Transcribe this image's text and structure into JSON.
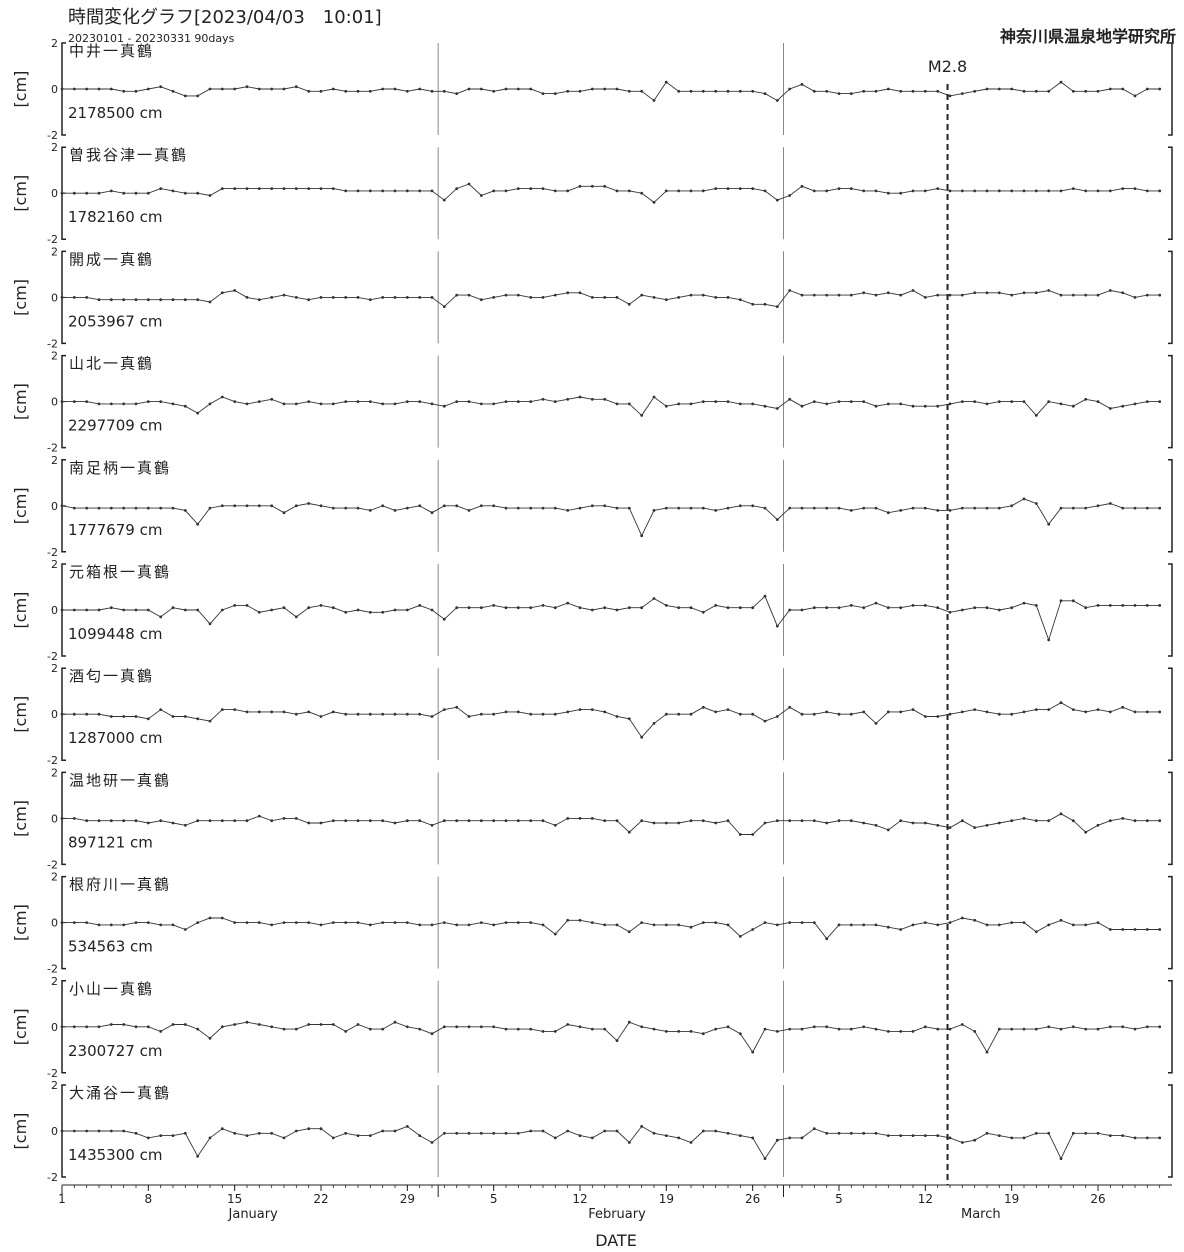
{
  "header": {
    "title": "時間変化グラフ[2023/04/03　10:01]",
    "subtitle": "20230101 - 20230331 90days",
    "institute": "神奈川県温泉地学研究所"
  },
  "colors": {
    "line": "#333333",
    "axis": "#222222",
    "separator": "#888888",
    "marker": "#333333"
  },
  "chart_data": {
    "type": "line",
    "title": "時間変化グラフ[2023/04/03　10:01]",
    "subtitle": "20230101 - 20230331 90days",
    "xlabel": "DATE",
    "ylabel": "[cm]",
    "ylim": [
      -2,
      2
    ],
    "yticks": [
      "2",
      "0",
      "-2"
    ],
    "x_days": 90,
    "x_start": "2023-01-01",
    "xticks": [
      {
        "day": 1,
        "label": "1"
      },
      {
        "day": 8,
        "label": "8"
      },
      {
        "day": 15,
        "label": "15"
      },
      {
        "day": 22,
        "label": "22"
      },
      {
        "day": 29,
        "label": "29"
      },
      {
        "day": 36,
        "label": "5"
      },
      {
        "day": 43,
        "label": "12"
      },
      {
        "day": 50,
        "label": "19"
      },
      {
        "day": 57,
        "label": "26"
      },
      {
        "day": 64,
        "label": "5"
      },
      {
        "day": 71,
        "label": "12"
      },
      {
        "day": 78,
        "label": "19"
      },
      {
        "day": 85,
        "label": "26"
      }
    ],
    "months": [
      {
        "label": "January",
        "start_day": 1,
        "end_day": 32
      },
      {
        "label": "February",
        "start_day": 32,
        "end_day": 60
      },
      {
        "label": "March",
        "start_day": 60,
        "end_day": 91
      }
    ],
    "event": {
      "label": "M2.8",
      "day": 72.8
    },
    "series": [
      {
        "name": "中井一真鶴",
        "baseline_label": "2178500 cm",
        "values": [
          0,
          0,
          0,
          0,
          0,
          -0.1,
          -0.1,
          0,
          0.1,
          -0.1,
          -0.3,
          -0.3,
          0,
          0,
          0,
          0.1,
          0,
          0,
          0,
          0.1,
          -0.1,
          -0.1,
          0,
          -0.1,
          -0.1,
          -0.1,
          0,
          0,
          -0.1,
          0,
          -0.1,
          -0.1,
          -0.2,
          0,
          0,
          -0.1,
          0,
          0,
          0,
          -0.2,
          -0.2,
          -0.1,
          -0.1,
          0,
          0,
          0,
          -0.1,
          -0.1,
          -0.5,
          0.3,
          -0.1,
          -0.1,
          -0.1,
          -0.1,
          -0.1,
          -0.1,
          -0.1,
          -0.2,
          -0.5,
          0,
          0.2,
          -0.1,
          -0.1,
          -0.2,
          -0.2,
          -0.1,
          -0.1,
          0,
          -0.1,
          -0.1,
          -0.1,
          -0.1,
          -0.3,
          -0.2,
          -0.1,
          0,
          0,
          0,
          -0.1,
          -0.1,
          -0.1,
          0.3,
          -0.1,
          -0.1,
          -0.1,
          0,
          0,
          -0.3,
          0,
          0
        ]
      },
      {
        "name": "曽我谷津一真鶴",
        "baseline_label": "1782160 cm",
        "values": [
          0,
          0,
          0,
          0,
          0.1,
          0,
          0,
          0,
          0.2,
          0.1,
          0,
          0,
          -0.1,
          0.2,
          0.2,
          0.2,
          0.2,
          0.2,
          0.2,
          0.2,
          0.2,
          0.2,
          0.2,
          0.1,
          0.1,
          0.1,
          0.1,
          0.1,
          0.1,
          0.1,
          0.1,
          -0.3,
          0.2,
          0.4,
          -0.1,
          0.1,
          0.1,
          0.2,
          0.2,
          0.2,
          0.1,
          0.1,
          0.3,
          0.3,
          0.3,
          0.1,
          0.1,
          0,
          -0.4,
          0.1,
          0.1,
          0.1,
          0.1,
          0.2,
          0.2,
          0.2,
          0.2,
          0.1,
          -0.3,
          -0.1,
          0.3,
          0.1,
          0.1,
          0.2,
          0.2,
          0.1,
          0.1,
          0,
          0,
          0.1,
          0.1,
          0.2,
          0.1,
          0.1,
          0.1,
          0.1,
          0.1,
          0.1,
          0.1,
          0.1,
          0.1,
          0.1,
          0.2,
          0.1,
          0.1,
          0.1,
          0.2,
          0.2,
          0.1,
          0.1
        ]
      },
      {
        "name": "開成一真鶴",
        "baseline_label": "2053967 cm",
        "values": [
          0,
          0,
          0,
          -0.1,
          -0.1,
          -0.1,
          -0.1,
          -0.1,
          -0.1,
          -0.1,
          -0.1,
          -0.1,
          -0.2,
          0.2,
          0.3,
          0,
          -0.1,
          0,
          0.1,
          0,
          -0.1,
          0,
          0,
          0,
          0,
          -0.1,
          0,
          0,
          0,
          0,
          0,
          -0.4,
          0.1,
          0.1,
          -0.1,
          0,
          0.1,
          0.1,
          0,
          0,
          0.1,
          0.2,
          0.2,
          0,
          0,
          0,
          -0.3,
          0.1,
          0,
          -0.1,
          0,
          0.1,
          0.1,
          0,
          0,
          -0.1,
          -0.3,
          -0.3,
          -0.4,
          0.3,
          0.1,
          0.1,
          0.1,
          0.1,
          0.1,
          0.2,
          0.1,
          0.2,
          0.1,
          0.3,
          0,
          0.1,
          0.1,
          0.1,
          0.2,
          0.2,
          0.2,
          0.1,
          0.2,
          0.2,
          0.3,
          0.1,
          0.1,
          0.1,
          0.1,
          0.3,
          0.2,
          0,
          0.1,
          0.1
        ]
      },
      {
        "name": "山北一真鶴",
        "baseline_label": "2297709 cm",
        "values": [
          0,
          0,
          0,
          -0.1,
          -0.1,
          -0.1,
          -0.1,
          0,
          0,
          -0.1,
          -0.2,
          -0.5,
          -0.1,
          0.2,
          0,
          -0.1,
          0,
          0.1,
          -0.1,
          -0.1,
          0,
          -0.1,
          -0.1,
          0,
          0,
          0,
          -0.1,
          -0.1,
          0,
          0,
          -0.1,
          -0.2,
          0,
          0,
          -0.1,
          -0.1,
          0,
          0,
          0,
          0.1,
          0,
          0.1,
          0.2,
          0.1,
          0.1,
          -0.1,
          -0.1,
          -0.6,
          0.2,
          -0.2,
          -0.1,
          -0.1,
          0,
          0,
          0,
          -0.1,
          -0.1,
          -0.2,
          -0.3,
          0.1,
          -0.2,
          0,
          -0.1,
          0,
          0,
          0,
          -0.2,
          -0.1,
          -0.1,
          -0.2,
          -0.2,
          -0.2,
          -0.1,
          0,
          0,
          -0.1,
          0,
          0,
          0,
          -0.6,
          0,
          -0.1,
          -0.2,
          0.1,
          0,
          -0.3,
          -0.2,
          -0.1,
          0,
          0
        ]
      },
      {
        "name": "南足柄一真鶴",
        "baseline_label": "1777679 cm",
        "values": [
          0,
          -0.1,
          -0.1,
          -0.1,
          -0.1,
          -0.1,
          -0.1,
          -0.1,
          -0.1,
          -0.1,
          -0.2,
          -0.8,
          -0.1,
          0,
          0,
          0,
          0,
          0,
          -0.3,
          0,
          0.1,
          0,
          -0.1,
          -0.1,
          -0.1,
          -0.2,
          0,
          -0.2,
          -0.1,
          0,
          -0.3,
          0,
          0,
          -0.2,
          0,
          0,
          -0.1,
          -0.1,
          -0.1,
          -0.1,
          -0.1,
          -0.2,
          -0.1,
          0,
          0,
          -0.1,
          -0.1,
          -1.3,
          -0.2,
          -0.1,
          -0.1,
          -0.1,
          -0.1,
          -0.2,
          -0.1,
          0,
          0,
          -0.1,
          -0.6,
          -0.1,
          -0.1,
          -0.1,
          -0.1,
          -0.1,
          -0.2,
          -0.1,
          -0.1,
          -0.3,
          -0.2,
          -0.1,
          -0.1,
          -0.2,
          -0.2,
          -0.1,
          -0.1,
          -0.1,
          -0.1,
          0,
          0.3,
          0.1,
          -0.8,
          -0.1,
          -0.1,
          -0.1,
          0,
          0.1,
          -0.1,
          -0.1,
          -0.1,
          -0.1
        ]
      },
      {
        "name": "元箱根一真鶴",
        "baseline_label": "1099448 cm",
        "values": [
          0,
          0,
          0,
          0,
          0.1,
          0,
          0,
          0,
          -0.3,
          0.1,
          0,
          0,
          -0.6,
          0,
          0.2,
          0.2,
          -0.1,
          0,
          0.1,
          -0.3,
          0.1,
          0.2,
          0.1,
          -0.1,
          0,
          -0.1,
          -0.1,
          0,
          0,
          0.2,
          0,
          -0.4,
          0.1,
          0.1,
          0.1,
          0.2,
          0.1,
          0.1,
          0.1,
          0.2,
          0.1,
          0.3,
          0.1,
          0,
          0.1,
          0,
          0.1,
          0.1,
          0.5,
          0.2,
          0.1,
          0.1,
          -0.1,
          0.2,
          0.1,
          0.1,
          0.1,
          0.6,
          -0.7,
          0,
          0,
          0.1,
          0.1,
          0.1,
          0.2,
          0.1,
          0.3,
          0.1,
          0.1,
          0.2,
          0.2,
          0.1,
          -0.1,
          0,
          0.1,
          0.1,
          0,
          0.1,
          0.3,
          0.2,
          -1.3,
          0.4,
          0.4,
          0.1,
          0.2,
          0.2,
          0.2,
          0.2,
          0.2,
          0.2
        ]
      },
      {
        "name": "酒匂一真鶴",
        "baseline_label": "1287000 cm",
        "values": [
          0,
          0,
          0,
          0,
          -0.1,
          -0.1,
          -0.1,
          -0.2,
          0.2,
          -0.1,
          -0.1,
          -0.2,
          -0.3,
          0.2,
          0.2,
          0.1,
          0.1,
          0.1,
          0.1,
          0,
          0.1,
          -0.1,
          0.1,
          0,
          0,
          0,
          0,
          0,
          0,
          0,
          -0.1,
          0.2,
          0.3,
          -0.1,
          0,
          0,
          0.1,
          0.1,
          0,
          0,
          0,
          0.1,
          0.2,
          0.2,
          0.1,
          -0.1,
          -0.2,
          -1.0,
          -0.4,
          0,
          0,
          0,
          0.3,
          0.1,
          0.2,
          0,
          0,
          -0.3,
          -0.1,
          0.3,
          0,
          0,
          0.1,
          0,
          0,
          0.1,
          -0.4,
          0.1,
          0.1,
          0.2,
          -0.1,
          -0.1,
          0,
          0.1,
          0.2,
          0.1,
          0,
          0,
          0.1,
          0.2,
          0.2,
          0.5,
          0.2,
          0.1,
          0.2,
          0.1,
          0.3,
          0.1,
          0.1,
          0.1
        ]
      },
      {
        "name": "温地研一真鶴",
        "baseline_label": "897121 cm",
        "values": [
          0,
          0,
          -0.1,
          -0.1,
          -0.1,
          -0.1,
          -0.1,
          -0.2,
          -0.1,
          -0.2,
          -0.3,
          -0.1,
          -0.1,
          -0.1,
          -0.1,
          -0.1,
          0.1,
          -0.1,
          0,
          0,
          -0.2,
          -0.2,
          -0.1,
          -0.1,
          -0.1,
          -0.1,
          -0.1,
          -0.2,
          -0.1,
          -0.1,
          -0.3,
          -0.1,
          -0.1,
          -0.1,
          -0.1,
          -0.1,
          -0.1,
          -0.1,
          -0.1,
          -0.1,
          -0.3,
          0,
          0,
          0,
          -0.1,
          -0.1,
          -0.6,
          -0.1,
          -0.2,
          -0.2,
          -0.2,
          -0.1,
          -0.1,
          -0.2,
          -0.1,
          -0.7,
          -0.7,
          -0.2,
          -0.1,
          -0.1,
          -0.1,
          -0.1,
          -0.2,
          -0.1,
          -0.1,
          -0.2,
          -0.3,
          -0.5,
          -0.1,
          -0.2,
          -0.2,
          -0.3,
          -0.4,
          -0.1,
          -0.4,
          -0.3,
          -0.2,
          -0.1,
          0,
          -0.1,
          -0.1,
          0.2,
          -0.1,
          -0.6,
          -0.3,
          -0.1,
          0,
          -0.1,
          -0.1,
          -0.1
        ]
      },
      {
        "name": "根府川一真鶴",
        "baseline_label": "534563 cm",
        "values": [
          0,
          0,
          0,
          -0.1,
          -0.1,
          -0.1,
          0,
          0,
          -0.1,
          -0.1,
          -0.3,
          0,
          0.2,
          0.2,
          0,
          0,
          0,
          -0.1,
          0,
          0,
          0,
          -0.1,
          0,
          0,
          0,
          -0.1,
          0,
          0,
          0,
          -0.1,
          -0.1,
          0,
          -0.1,
          -0.1,
          0,
          -0.1,
          0,
          0,
          0,
          -0.1,
          -0.5,
          0.1,
          0.1,
          0,
          -0.1,
          -0.1,
          -0.4,
          0,
          -0.1,
          -0.1,
          -0.1,
          -0.2,
          0,
          0,
          -0.1,
          -0.6,
          -0.3,
          0,
          -0.1,
          0,
          0,
          0,
          -0.7,
          -0.1,
          -0.1,
          -0.1,
          -0.1,
          -0.2,
          -0.3,
          -0.1,
          0,
          -0.1,
          0,
          0.2,
          0.1,
          -0.1,
          -0.1,
          0,
          0,
          -0.4,
          -0.1,
          0.1,
          -0.1,
          -0.1,
          0,
          -0.3,
          -0.3,
          -0.3,
          -0.3,
          -0.3
        ]
      },
      {
        "name": "小山一真鶴",
        "baseline_label": "2300727 cm",
        "values": [
          0,
          0,
          0,
          0,
          0.1,
          0.1,
          0,
          0,
          -0.2,
          0.1,
          0.1,
          -0.1,
          -0.5,
          0,
          0.1,
          0.2,
          0.1,
          0,
          -0.1,
          -0.1,
          0.1,
          0.1,
          0.1,
          -0.2,
          0.1,
          -0.1,
          -0.1,
          0.2,
          0,
          -0.1,
          -0.3,
          0,
          0,
          0,
          0,
          0,
          -0.1,
          -0.1,
          -0.1,
          -0.2,
          -0.2,
          0.1,
          0,
          -0.1,
          -0.1,
          -0.6,
          0.2,
          0,
          -0.1,
          -0.2,
          -0.2,
          -0.2,
          -0.3,
          -0.1,
          0,
          -0.3,
          -1.1,
          -0.1,
          -0.2,
          -0.1,
          -0.1,
          0,
          0,
          -0.1,
          -0.1,
          0,
          -0.1,
          -0.2,
          -0.2,
          -0.2,
          0,
          -0.1,
          -0.1,
          0.1,
          -0.2,
          -1.1,
          -0.1,
          -0.1,
          -0.1,
          -0.1,
          0,
          -0.1,
          0,
          -0.1,
          -0.1,
          0,
          0,
          -0.1,
          0,
          0
        ]
      },
      {
        "name": "大涌谷一真鶴",
        "baseline_label": "1435300 cm",
        "values": [
          0,
          0,
          0,
          0,
          0,
          0,
          -0.1,
          -0.3,
          -0.2,
          -0.2,
          -0.1,
          -1.1,
          -0.3,
          0.1,
          -0.1,
          -0.2,
          -0.1,
          -0.1,
          -0.3,
          0,
          0.1,
          0.1,
          -0.3,
          -0.1,
          -0.2,
          -0.2,
          0,
          0,
          0.2,
          -0.2,
          -0.5,
          -0.1,
          -0.1,
          -0.1,
          -0.1,
          -0.1,
          -0.1,
          -0.1,
          0,
          0,
          -0.3,
          0,
          -0.2,
          -0.3,
          0,
          0,
          -0.5,
          0.2,
          -0.1,
          -0.2,
          -0.3,
          -0.5,
          0,
          0,
          -0.1,
          -0.2,
          -0.3,
          -1.2,
          -0.4,
          -0.3,
          -0.3,
          0.1,
          -0.1,
          -0.1,
          -0.1,
          -0.1,
          -0.1,
          -0.2,
          -0.2,
          -0.2,
          -0.2,
          -0.2,
          -0.3,
          -0.5,
          -0.4,
          -0.1,
          -0.2,
          -0.3,
          -0.3,
          -0.1,
          -0.1,
          -1.2,
          -0.1,
          -0.1,
          -0.1,
          -0.2,
          -0.2,
          -0.3,
          -0.3,
          -0.3
        ]
      }
    ]
  }
}
